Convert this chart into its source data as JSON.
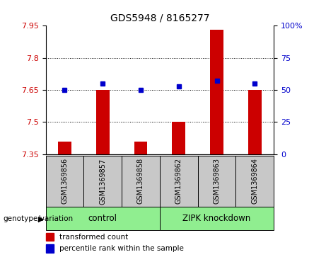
{
  "title": "GDS5948 / 8165277",
  "samples": [
    "GSM1369856",
    "GSM1369857",
    "GSM1369858",
    "GSM1369862",
    "GSM1369863",
    "GSM1369864"
  ],
  "red_values": [
    7.41,
    7.65,
    7.41,
    7.5,
    7.93,
    7.65
  ],
  "blue_values": [
    50,
    55,
    50,
    53,
    57,
    55
  ],
  "ylim_left": [
    7.35,
    7.95
  ],
  "ylim_right": [
    0,
    100
  ],
  "yticks_left": [
    7.35,
    7.5,
    7.65,
    7.8,
    7.95
  ],
  "ytick_labels_left": [
    "7.35",
    "7.5",
    "7.65",
    "7.8",
    "7.95"
  ],
  "yticks_right": [
    0,
    25,
    50,
    75,
    100
  ],
  "ytick_labels_right": [
    "0",
    "25",
    "50",
    "75",
    "100%"
  ],
  "grid_values": [
    7.5,
    7.65,
    7.8
  ],
  "bar_bottom": 7.35,
  "red_color": "#cc0000",
  "blue_color": "#0000cc",
  "bar_width": 0.35,
  "genotype_label": "genotype/variation",
  "legend_red": "transformed count",
  "legend_blue": "percentile rank within the sample",
  "bg_color": "#ffffff",
  "tick_label_color_left": "#cc0000",
  "tick_label_color_right": "#0000cc",
  "gray_color": "#c8c8c8",
  "green_color": "#90ee90"
}
